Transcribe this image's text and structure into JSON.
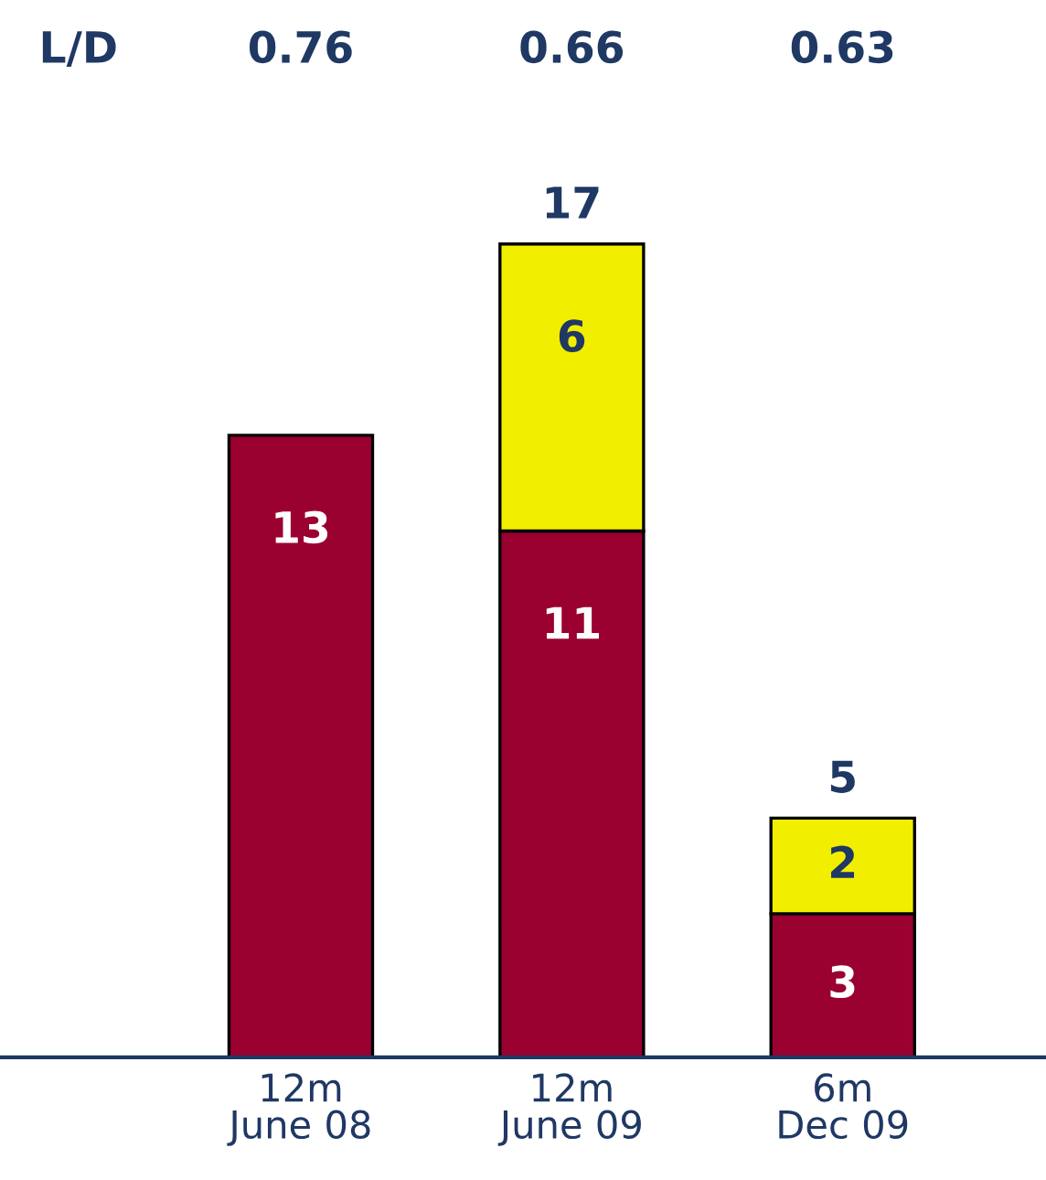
{
  "chart_data": {
    "type": "bar",
    "stacked": true,
    "data_labels": true,
    "legend": false,
    "grid": false,
    "categories": [
      "12m\nJune 08",
      "12m\nJune 09",
      "6m\nDec 09"
    ],
    "series": [
      {
        "color": "#9a0030",
        "values": [
          13,
          11,
          3
        ]
      },
      {
        "color": "#f2ee00",
        "values": [
          null,
          6,
          2
        ]
      }
    ],
    "totals": [
      null,
      "17",
      "5"
    ],
    "annotations": [
      "L/D",
      "0.76",
      "0.66",
      "0.63"
    ]
  }
}
